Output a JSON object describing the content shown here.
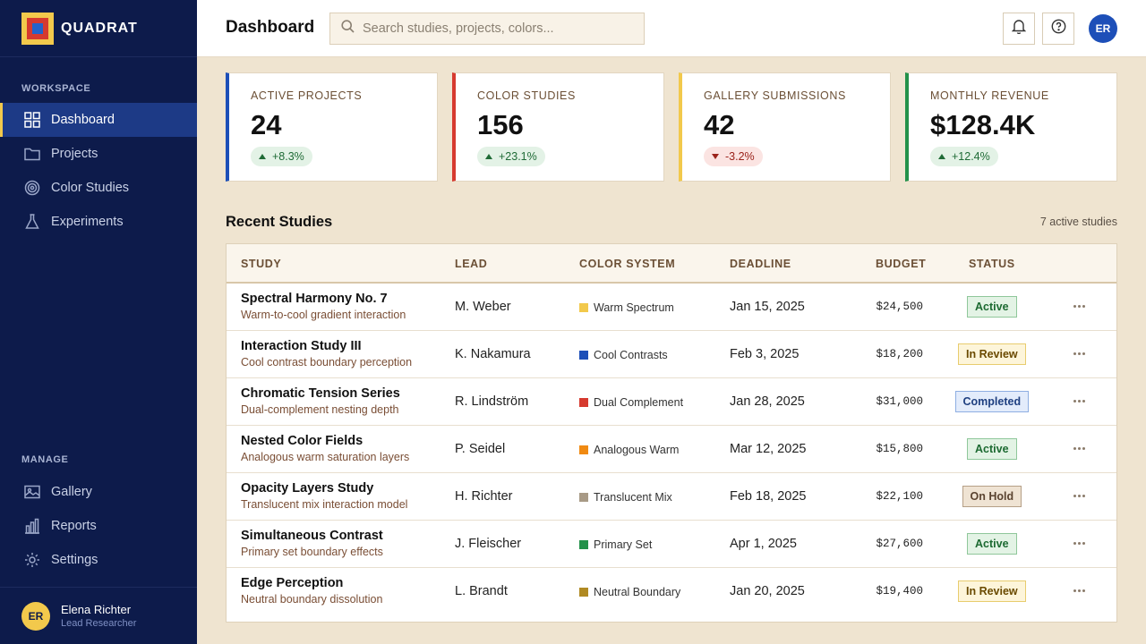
{
  "app": {
    "name": "QUADRAT"
  },
  "sidebar": {
    "workspace_label": "WORKSPACE",
    "manage_label": "MANAGE",
    "workspace_items": [
      {
        "label": "Dashboard",
        "icon": "grid-icon",
        "active": true
      },
      {
        "label": "Projects",
        "icon": "folder-icon"
      },
      {
        "label": "Color Studies",
        "icon": "target-icon"
      },
      {
        "label": "Experiments",
        "icon": "flask-icon"
      }
    ],
    "manage_items": [
      {
        "label": "Gallery",
        "icon": "image-icon"
      },
      {
        "label": "Reports",
        "icon": "bar-chart-icon"
      },
      {
        "label": "Settings",
        "icon": "sun-gear-icon"
      }
    ],
    "user": {
      "initials": "ER",
      "name": "Elena Richter",
      "role": "Lead Researcher"
    }
  },
  "header": {
    "title": "Dashboard",
    "search_placeholder": "Search studies, projects, colors...",
    "avatar_initials": "ER"
  },
  "stats": [
    {
      "label": "ACTIVE PROJECTS",
      "value": "24",
      "change": "+8.3%",
      "trend": "up",
      "color": "#1d4fb8"
    },
    {
      "label": "COLOR STUDIES",
      "value": "156",
      "change": "+23.1%",
      "trend": "up",
      "color": "#d63a2f"
    },
    {
      "label": "GALLERY SUBMISSIONS",
      "value": "42",
      "change": "-3.2%",
      "trend": "down",
      "color": "#f2c94c"
    },
    {
      "label": "MONTHLY REVENUE",
      "value": "$128.4K",
      "change": "+12.4%",
      "trend": "up",
      "color": "#23914a"
    }
  ],
  "studies": {
    "title": "Recent Studies",
    "count_text": "7 active studies",
    "columns": [
      "STUDY",
      "LEAD",
      "COLOR SYSTEM",
      "DEADLINE",
      "BUDGET",
      "STATUS"
    ],
    "rows": [
      {
        "name": "Spectral Harmony No. 7",
        "desc": "Warm-to-cool gradient interaction",
        "lead": "M. Weber",
        "system": "Warm Spectrum",
        "swatch": "#f2c94c",
        "deadline": "Jan 15, 2025",
        "budget": "$24,500",
        "status": "Active"
      },
      {
        "name": "Interaction Study III",
        "desc": "Cool contrast boundary perception",
        "lead": "K. Nakamura",
        "system": "Cool Contrasts",
        "swatch": "#1d4fb8",
        "deadline": "Feb 3, 2025",
        "budget": "$18,200",
        "status": "In Review"
      },
      {
        "name": "Chromatic Tension Series",
        "desc": "Dual-complement nesting depth",
        "lead": "R. Lindström",
        "system": "Dual Complement",
        "swatch": "#d63a2f",
        "deadline": "Jan 28, 2025",
        "budget": "$31,000",
        "status": "Completed"
      },
      {
        "name": "Nested Color Fields",
        "desc": "Analogous warm saturation layers",
        "lead": "P. Seidel",
        "system": "Analogous Warm",
        "swatch": "#f08a12",
        "deadline": "Mar 12, 2025",
        "budget": "$15,800",
        "status": "Active"
      },
      {
        "name": "Opacity Layers Study",
        "desc": "Translucent mix interaction model",
        "lead": "H. Richter",
        "system": "Translucent Mix",
        "swatch": "#a89a86",
        "deadline": "Feb 18, 2025",
        "budget": "$22,100",
        "status": "On Hold"
      },
      {
        "name": "Simultaneous Contrast",
        "desc": "Primary set boundary effects",
        "lead": "J. Fleischer",
        "system": "Primary Set",
        "swatch": "#23914a",
        "deadline": "Apr 1, 2025",
        "budget": "$27,600",
        "status": "Active"
      },
      {
        "name": "Edge Perception",
        "desc": "Neutral boundary dissolution",
        "lead": "L. Brandt",
        "system": "Neutral Boundary",
        "swatch": "#b08a23",
        "deadline": "Jan 20, 2025",
        "budget": "$19,400",
        "status": "In Review"
      }
    ]
  }
}
